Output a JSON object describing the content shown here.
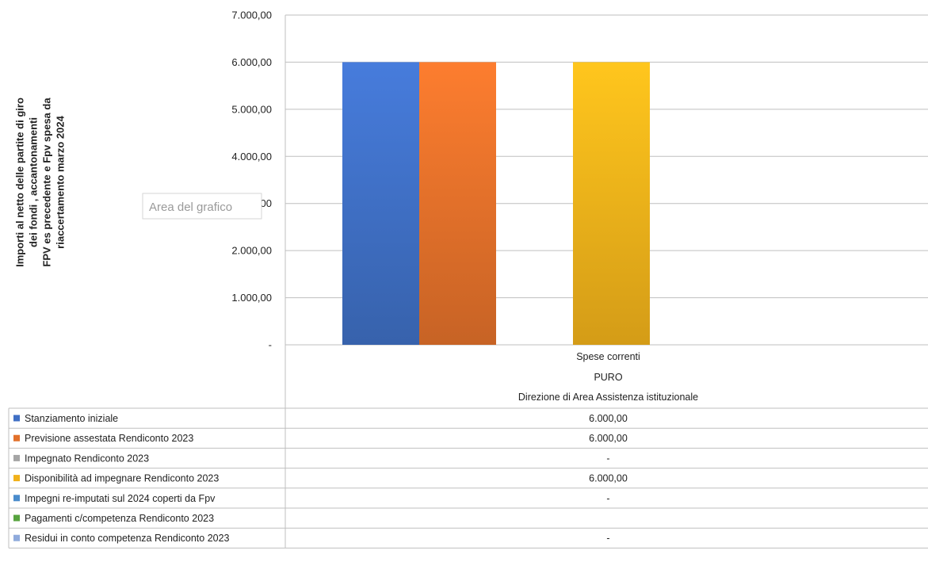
{
  "chart_data": {
    "type": "bar",
    "ylabel": "Importi al netto delle partite di giro dei fondi , accantonamenti FPV es precedente e Fpv spesa da riaccertamento marzo 2024",
    "ylabel_lines": [
      "Importi al netto delle partite di giro",
      "dei fondi , accantonamenti",
      "FPV es precedente e Fpv spesa da",
      "riaccertamento marzo 2024"
    ],
    "ylim": [
      0,
      7000
    ],
    "yticks": [
      0,
      1000,
      2000,
      3000,
      4000,
      5000,
      6000,
      7000
    ],
    "ytick_labels": [
      "-",
      "1.000,00",
      "2.000,00",
      "3.000,00",
      "4.000,00",
      "5.000,00",
      "6.000,00",
      "7.000,00"
    ],
    "grid": true,
    "categories": [
      [
        "Spese correnti",
        "PURO",
        "Direzione di Area Assistenza istituzionale"
      ]
    ],
    "series": [
      {
        "name": "Stanziamento iniziale",
        "color": "#3f6fc4",
        "values": [
          6000
        ],
        "table_value": "6.000,00"
      },
      {
        "name": "Previsione assestata Rendiconto 2023",
        "color": "#e2702a",
        "values": [
          6000
        ],
        "table_value": "6.000,00"
      },
      {
        "name": "Impegnato Rendiconto 2023",
        "color": "#a5a5a5",
        "values": [
          0
        ],
        "table_value": "-"
      },
      {
        "name": " Disponibilità ad impegnare  Rendiconto 2023",
        "color": "#f1b11a",
        "values": [
          6000
        ],
        "table_value": "6.000,00"
      },
      {
        "name": "Impegni re-imputati sul 2024 coperti da Fpv",
        "color": "#4a8ccc",
        "values": [
          0
        ],
        "table_value": "-"
      },
      {
        "name": "Pagamenti c/competenza Rendiconto 2023",
        "color": "#57a33f",
        "values": [
          null
        ],
        "table_value": ""
      },
      {
        "name": "Residui in conto competenza Rendiconto 2023",
        "color": "#8faadc",
        "values": [
          0
        ],
        "table_value": "-"
      }
    ],
    "legend": "data-table"
  },
  "tooltip": {
    "label": "Area del grafico"
  }
}
